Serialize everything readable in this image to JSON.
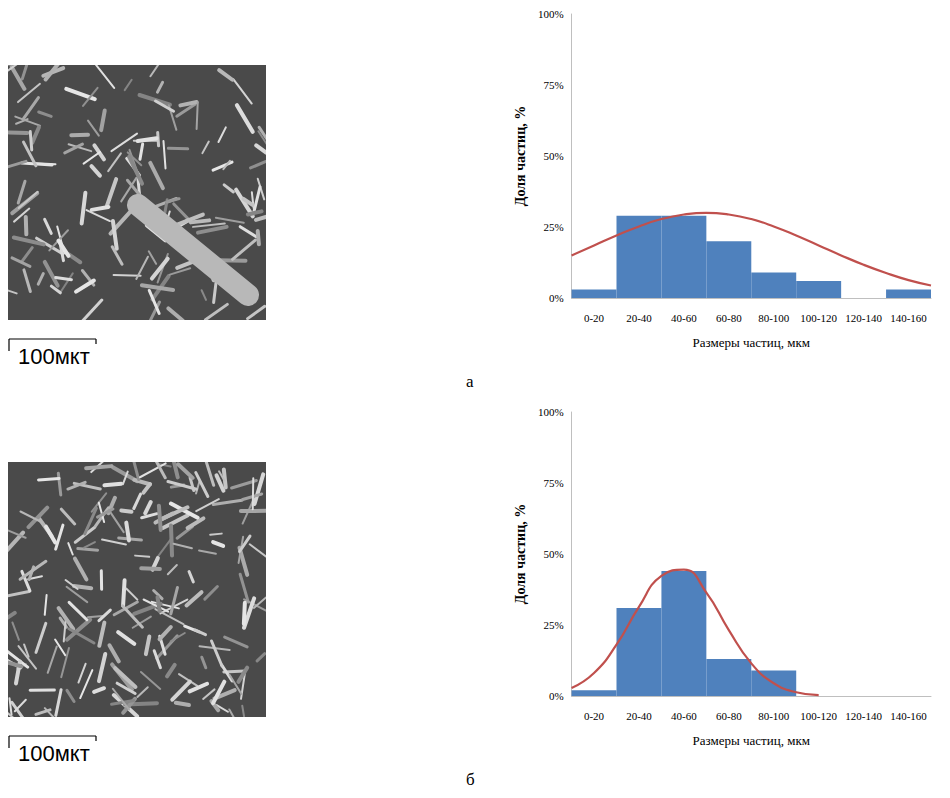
{
  "panel_labels": [
    "а",
    "б"
  ],
  "micrographs": [
    {
      "scale_bar": "100мкт"
    },
    {
      "scale_bar": "100мкт"
    }
  ],
  "chart_data": [
    {
      "type": "histogram",
      "x_label": "Размеры частиц, мкм",
      "y_label": "Доля частиц, %",
      "categories": [
        "0-20",
        "20-40",
        "40-60",
        "60-80",
        "80-100",
        "100-120",
        "120-140",
        "140-160"
      ],
      "bins": [
        0,
        20,
        40,
        60,
        80,
        100,
        120,
        140,
        160
      ],
      "ylim": [
        0,
        100
      ],
      "yticks": [
        {
          "value": 0,
          "label": "0%"
        },
        {
          "value": 25,
          "label": "25%"
        },
        {
          "value": 50,
          "label": "50%"
        },
        {
          "value": 75,
          "label": "75%"
        },
        {
          "value": 100,
          "label": "100%"
        }
      ],
      "grid": false,
      "series": [
        {
          "type": "bar",
          "color": "#4f81bd",
          "values": [
            3,
            29,
            29,
            20,
            9,
            6,
            0,
            3
          ]
        },
        {
          "type": "line",
          "color": "#c0504d",
          "x": [
            0,
            10,
            20,
            30,
            40,
            50,
            60,
            70,
            80,
            90,
            100,
            110,
            120,
            130,
            140,
            150,
            160
          ],
          "values": [
            15.0,
            18.5,
            22.0,
            25.2,
            27.8,
            29.4,
            30.0,
            29.4,
            27.8,
            25.2,
            22.0,
            18.5,
            15.0,
            11.7,
            8.8,
            6.3,
            4.4
          ]
        }
      ]
    },
    {
      "type": "histogram",
      "x_label": "Размеры частиц, мкм",
      "y_label": "Доля частиц, %",
      "categories": [
        "0-20",
        "20-40",
        "40-60",
        "60-80",
        "80-100",
        "100-120",
        "120-140",
        "140-160"
      ],
      "bins": [
        0,
        20,
        40,
        60,
        80,
        100,
        120,
        140,
        160
      ],
      "ylim": [
        0,
        100
      ],
      "yticks": [
        {
          "value": 0,
          "label": "0%"
        },
        {
          "value": 25,
          "label": "25%"
        },
        {
          "value": 50,
          "label": "50%"
        },
        {
          "value": 75,
          "label": "75%"
        },
        {
          "value": 100,
          "label": "100%"
        }
      ],
      "grid": false,
      "series": [
        {
          "type": "bar",
          "color": "#4f81bd",
          "values": [
            2,
            31,
            44,
            13,
            9,
            0,
            0,
            0
          ]
        },
        {
          "type": "line",
          "color": "#c0504d",
          "x": [
            0,
            10,
            20,
            30,
            40,
            50,
            60,
            70,
            80,
            90,
            100,
            110
          ],
          "values": [
            2.8,
            8.1,
            18.1,
            31.4,
            42.3,
            44.5,
            36.4,
            23.2,
            11.5,
            4.5,
            1.3,
            0.3
          ]
        }
      ]
    }
  ]
}
